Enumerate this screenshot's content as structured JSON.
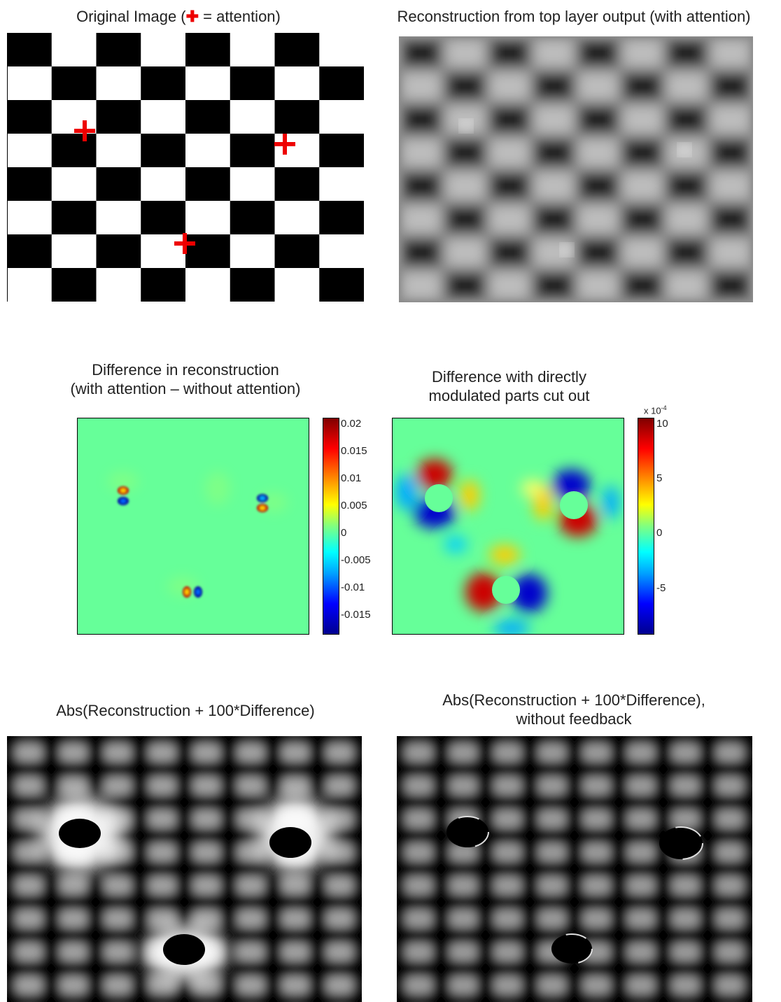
{
  "panels": {
    "original": {
      "title_pre": "Original Image (",
      "marker": "✚",
      "title_post": " = attention)"
    },
    "reconstruction": {
      "title": "Reconstruction from top layer output (with attention)"
    },
    "difference": {
      "title_line1": "Difference in reconstruction",
      "title_line2": "(with attention – without attention)"
    },
    "difference_cut": {
      "title_line1": "Difference with directly",
      "title_line2": "modulated parts cut out"
    },
    "abs_recon": {
      "title": "Abs(Reconstruction + 100*Difference)"
    },
    "abs_recon_nofb": {
      "title_line1": "Abs(Reconstruction + 100*Difference),",
      "title_line2": "without feedback"
    }
  },
  "colorbar1": {
    "ticks": [
      "0.02",
      "0.015",
      "0.01",
      "0.005",
      "0",
      "-0.005",
      "-0.01",
      "-0.015"
    ]
  },
  "colorbar2": {
    "exponent_base": "x 10",
    "exponent_power": "-4",
    "ticks": [
      "10",
      "5",
      "0",
      "-5"
    ]
  },
  "colors": {
    "attention_marker": "#ee0000",
    "background_field": "#66ff99"
  }
}
